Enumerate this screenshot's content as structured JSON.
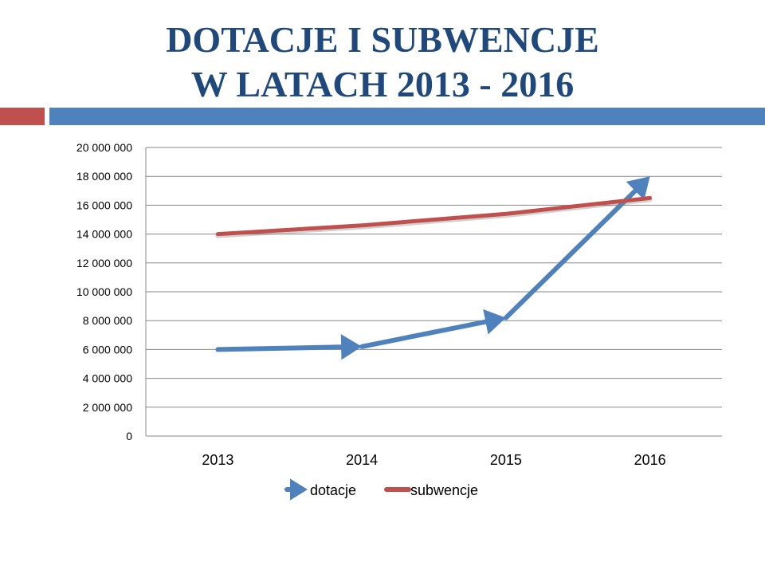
{
  "title": {
    "line1": "DOTACJE I SUBWENCJE",
    "line2": "W LATACH 2013 - 2016"
  },
  "colors": {
    "title": "#1f497d",
    "accent_red": "#c0504d",
    "accent_blue": "#4f81bd",
    "gridline": "#888888"
  },
  "chart_data": {
    "type": "line",
    "title": "",
    "xlabel": "",
    "ylabel": "",
    "categories": [
      "2013",
      "2014",
      "2015",
      "2016"
    ],
    "ylim": [
      0,
      20000000
    ],
    "ytick_step": 2000000,
    "ytick_labels": [
      "0",
      "2 000 000",
      "4 000 000",
      "6 000 000",
      "8 000 000",
      "10 000 000",
      "12 000 000",
      "14 000 000",
      "16 000 000",
      "18 000 000",
      "20 000 000"
    ],
    "grid": true,
    "legend_position": "bottom",
    "series": [
      {
        "name": "dotacje",
        "values": [
          6000000,
          6200000,
          8200000,
          18000000
        ],
        "color": "#4f81bd",
        "marker": "arrow"
      },
      {
        "name": "subwencje",
        "values": [
          14000000,
          14600000,
          15400000,
          16500000
        ],
        "color": "#c0504d",
        "marker": "line"
      }
    ]
  }
}
